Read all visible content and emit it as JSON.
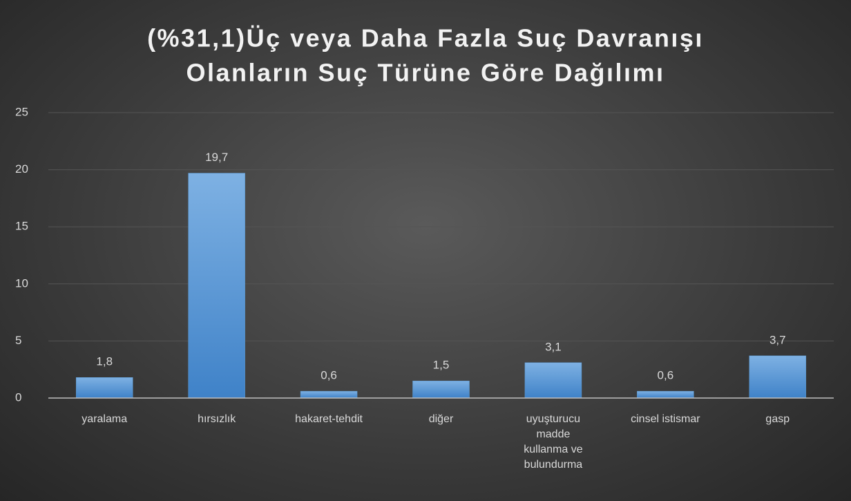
{
  "chart_data": {
    "type": "bar",
    "title": [
      "(%31,1)Üç veya Daha Fazla Suç Davranışı",
      "Olanların Suç Türüne Göre Dağılımı"
    ],
    "categories": [
      "yaralama",
      "hırsızlık",
      "hakaret-tehdit",
      "diğer",
      "uyuşturucu madde kullanma ve bulundurma",
      "cinsel istismar",
      "gasp"
    ],
    "values": [
      1.8,
      19.7,
      0.6,
      1.5,
      3.1,
      0.6,
      3.7
    ],
    "value_labels": [
      "1,8",
      "19,7",
      "0,6",
      "1,5",
      "3,1",
      "0,6",
      "3,7"
    ],
    "color": "#5b9bd5",
    "ylim": [
      0,
      25
    ],
    "yticks": [
      0,
      5,
      10,
      15,
      20,
      25
    ],
    "grid": true
  }
}
